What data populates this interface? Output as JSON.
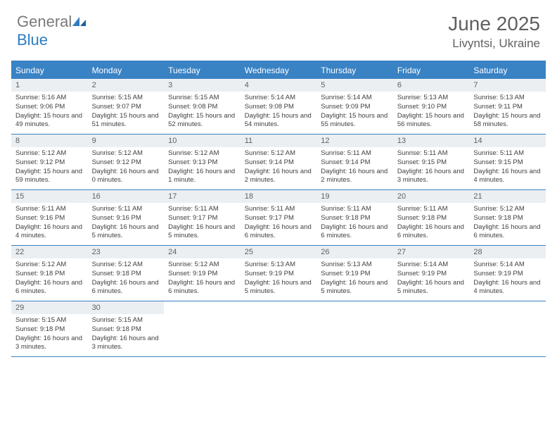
{
  "brand": {
    "part1": "General",
    "part2": "Blue"
  },
  "title": "June 2025",
  "location": "Livyntsi, Ukraine",
  "colors": {
    "accent": "#3982c4",
    "header_text": "#606060",
    "daynum_bg": "#eceff1",
    "body_text": "#404040"
  },
  "weekdays": [
    "Sunday",
    "Monday",
    "Tuesday",
    "Wednesday",
    "Thursday",
    "Friday",
    "Saturday"
  ],
  "weeks": [
    [
      {
        "n": "1",
        "sr": "5:16 AM",
        "ss": "9:06 PM",
        "dl": "15 hours and 49 minutes."
      },
      {
        "n": "2",
        "sr": "5:15 AM",
        "ss": "9:07 PM",
        "dl": "15 hours and 51 minutes."
      },
      {
        "n": "3",
        "sr": "5:15 AM",
        "ss": "9:08 PM",
        "dl": "15 hours and 52 minutes."
      },
      {
        "n": "4",
        "sr": "5:14 AM",
        "ss": "9:08 PM",
        "dl": "15 hours and 54 minutes."
      },
      {
        "n": "5",
        "sr": "5:14 AM",
        "ss": "9:09 PM",
        "dl": "15 hours and 55 minutes."
      },
      {
        "n": "6",
        "sr": "5:13 AM",
        "ss": "9:10 PM",
        "dl": "15 hours and 56 minutes."
      },
      {
        "n": "7",
        "sr": "5:13 AM",
        "ss": "9:11 PM",
        "dl": "15 hours and 58 minutes."
      }
    ],
    [
      {
        "n": "8",
        "sr": "5:12 AM",
        "ss": "9:12 PM",
        "dl": "15 hours and 59 minutes."
      },
      {
        "n": "9",
        "sr": "5:12 AM",
        "ss": "9:12 PM",
        "dl": "16 hours and 0 minutes."
      },
      {
        "n": "10",
        "sr": "5:12 AM",
        "ss": "9:13 PM",
        "dl": "16 hours and 1 minute."
      },
      {
        "n": "11",
        "sr": "5:12 AM",
        "ss": "9:14 PM",
        "dl": "16 hours and 2 minutes."
      },
      {
        "n": "12",
        "sr": "5:11 AM",
        "ss": "9:14 PM",
        "dl": "16 hours and 2 minutes."
      },
      {
        "n": "13",
        "sr": "5:11 AM",
        "ss": "9:15 PM",
        "dl": "16 hours and 3 minutes."
      },
      {
        "n": "14",
        "sr": "5:11 AM",
        "ss": "9:15 PM",
        "dl": "16 hours and 4 minutes."
      }
    ],
    [
      {
        "n": "15",
        "sr": "5:11 AM",
        "ss": "9:16 PM",
        "dl": "16 hours and 4 minutes."
      },
      {
        "n": "16",
        "sr": "5:11 AM",
        "ss": "9:16 PM",
        "dl": "16 hours and 5 minutes."
      },
      {
        "n": "17",
        "sr": "5:11 AM",
        "ss": "9:17 PM",
        "dl": "16 hours and 5 minutes."
      },
      {
        "n": "18",
        "sr": "5:11 AM",
        "ss": "9:17 PM",
        "dl": "16 hours and 6 minutes."
      },
      {
        "n": "19",
        "sr": "5:11 AM",
        "ss": "9:18 PM",
        "dl": "16 hours and 6 minutes."
      },
      {
        "n": "20",
        "sr": "5:11 AM",
        "ss": "9:18 PM",
        "dl": "16 hours and 6 minutes."
      },
      {
        "n": "21",
        "sr": "5:12 AM",
        "ss": "9:18 PM",
        "dl": "16 hours and 6 minutes."
      }
    ],
    [
      {
        "n": "22",
        "sr": "5:12 AM",
        "ss": "9:18 PM",
        "dl": "16 hours and 6 minutes."
      },
      {
        "n": "23",
        "sr": "5:12 AM",
        "ss": "9:18 PM",
        "dl": "16 hours and 6 minutes."
      },
      {
        "n": "24",
        "sr": "5:12 AM",
        "ss": "9:19 PM",
        "dl": "16 hours and 6 minutes."
      },
      {
        "n": "25",
        "sr": "5:13 AM",
        "ss": "9:19 PM",
        "dl": "16 hours and 5 minutes."
      },
      {
        "n": "26",
        "sr": "5:13 AM",
        "ss": "9:19 PM",
        "dl": "16 hours and 5 minutes."
      },
      {
        "n": "27",
        "sr": "5:14 AM",
        "ss": "9:19 PM",
        "dl": "16 hours and 5 minutes."
      },
      {
        "n": "28",
        "sr": "5:14 AM",
        "ss": "9:19 PM",
        "dl": "16 hours and 4 minutes."
      }
    ],
    [
      {
        "n": "29",
        "sr": "5:15 AM",
        "ss": "9:18 PM",
        "dl": "16 hours and 3 minutes."
      },
      {
        "n": "30",
        "sr": "5:15 AM",
        "ss": "9:18 PM",
        "dl": "16 hours and 3 minutes."
      },
      {
        "empty": true
      },
      {
        "empty": true
      },
      {
        "empty": true
      },
      {
        "empty": true
      },
      {
        "empty": true
      }
    ]
  ],
  "labels": {
    "sunrise": "Sunrise: ",
    "sunset": "Sunset: ",
    "daylight": "Daylight: "
  }
}
